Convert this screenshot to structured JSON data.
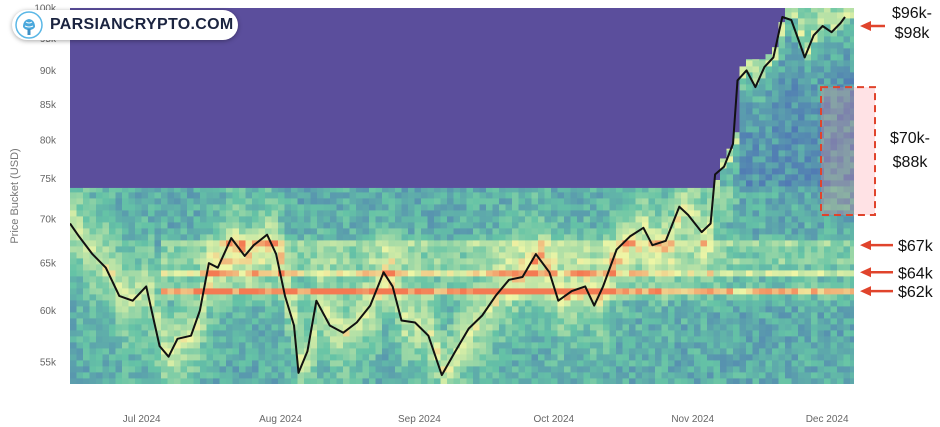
{
  "brand": {
    "name": "PARSIANCRYPTO.COM"
  },
  "chart_data": {
    "type": "heatmap",
    "ylabel": "Price Bucket (USD)",
    "y_scale": "log",
    "ylim": [
      53000,
      100000
    ],
    "yticks": [
      {
        "v": 55000,
        "label": "55k"
      },
      {
        "v": 60000,
        "label": "60k"
      },
      {
        "v": 65000,
        "label": "65k"
      },
      {
        "v": 70000,
        "label": "70k"
      },
      {
        "v": 75000,
        "label": "75k"
      },
      {
        "v": 80000,
        "label": "80k"
      },
      {
        "v": 85000,
        "label": "85k"
      },
      {
        "v": 90000,
        "label": "90k"
      },
      {
        "v": 95000,
        "label": "95k"
      },
      {
        "v": 100000,
        "label": "100k"
      }
    ],
    "xlim": [
      "2024-06-15",
      "2024-12-07"
    ],
    "xticks": [
      {
        "date": "2024-07-01",
        "label": "Jul 2024"
      },
      {
        "date": "2024-08-01",
        "label": "Aug 2024"
      },
      {
        "date": "2024-09-01",
        "label": "Sep 2024"
      },
      {
        "date": "2024-10-01",
        "label": "Oct 2024"
      },
      {
        "date": "2024-11-01",
        "label": "Nov 2024"
      },
      {
        "date": "2024-12-01",
        "label": "Dec 2024"
      }
    ],
    "colors": {
      "empty": "#5b4e9c",
      "low": "#4f74b5",
      "mid": "#65c3a6",
      "high": "#eef6a6",
      "peak": "#f47a52",
      "price_line": "#111111",
      "arrow": "#e0442c"
    },
    "price_series": [
      [
        "2024-06-15",
        69500
      ],
      [
        "2024-06-17",
        68000
      ],
      [
        "2024-06-20",
        66000
      ],
      [
        "2024-06-23",
        64500
      ],
      [
        "2024-06-26",
        61500
      ],
      [
        "2024-06-29",
        61000
      ],
      [
        "2024-07-02",
        62500
      ],
      [
        "2024-07-05",
        56500
      ],
      [
        "2024-07-07",
        55500
      ],
      [
        "2024-07-09",
        57200
      ],
      [
        "2024-07-12",
        57500
      ],
      [
        "2024-07-14",
        60000
      ],
      [
        "2024-07-16",
        65000
      ],
      [
        "2024-07-18",
        64500
      ],
      [
        "2024-07-21",
        67800
      ],
      [
        "2024-07-24",
        65800
      ],
      [
        "2024-07-26",
        67000
      ],
      [
        "2024-07-29",
        68200
      ],
      [
        "2024-07-31",
        66000
      ],
      [
        "2024-08-02",
        61500
      ],
      [
        "2024-08-04",
        58500
      ],
      [
        "2024-08-05",
        54000
      ],
      [
        "2024-08-07",
        56000
      ],
      [
        "2024-08-09",
        61000
      ],
      [
        "2024-08-12",
        58500
      ],
      [
        "2024-08-15",
        57800
      ],
      [
        "2024-08-18",
        58800
      ],
      [
        "2024-08-21",
        60500
      ],
      [
        "2024-08-24",
        64000
      ],
      [
        "2024-08-26",
        62500
      ],
      [
        "2024-08-28",
        59000
      ],
      [
        "2024-08-31",
        58800
      ],
      [
        "2024-09-03",
        57500
      ],
      [
        "2024-09-06",
        53800
      ],
      [
        "2024-09-09",
        56000
      ],
      [
        "2024-09-12",
        58200
      ],
      [
        "2024-09-15",
        59500
      ],
      [
        "2024-09-18",
        61500
      ],
      [
        "2024-09-21",
        63200
      ],
      [
        "2024-09-24",
        63500
      ],
      [
        "2024-09-27",
        66000
      ],
      [
        "2024-09-30",
        64000
      ],
      [
        "2024-10-02",
        61000
      ],
      [
        "2024-10-05",
        62000
      ],
      [
        "2024-10-08",
        62500
      ],
      [
        "2024-10-10",
        60500
      ],
      [
        "2024-10-12",
        62500
      ],
      [
        "2024-10-15",
        66500
      ],
      [
        "2024-10-18",
        68000
      ],
      [
        "2024-10-21",
        69000
      ],
      [
        "2024-10-23",
        67000
      ],
      [
        "2024-10-26",
        67500
      ],
      [
        "2024-10-29",
        71500
      ],
      [
        "2024-10-31",
        70500
      ],
      [
        "2024-11-03",
        68500
      ],
      [
        "2024-11-05",
        69500
      ],
      [
        "2024-11-06",
        75500
      ],
      [
        "2024-11-08",
        76500
      ],
      [
        "2024-11-10",
        79500
      ],
      [
        "2024-11-11",
        88500
      ],
      [
        "2024-11-13",
        90000
      ],
      [
        "2024-11-15",
        87500
      ],
      [
        "2024-11-17",
        90500
      ],
      [
        "2024-11-19",
        92000
      ],
      [
        "2024-11-21",
        98500
      ],
      [
        "2024-11-23",
        98000
      ],
      [
        "2024-11-25",
        94000
      ],
      [
        "2024-11-26",
        92000
      ],
      [
        "2024-11-28",
        95500
      ],
      [
        "2024-11-30",
        97000
      ],
      [
        "2024-12-02",
        96000
      ],
      [
        "2024-12-04",
        97500
      ],
      [
        "2024-12-05",
        98500
      ]
    ],
    "annotations": [
      {
        "lines": [
          "$96k-",
          "$98k"
        ],
        "target": 97000
      },
      {
        "lines": [
          "$70k-",
          "$88k"
        ],
        "range": [
          70500,
          87500
        ]
      },
      {
        "lines": [
          "$67k"
        ],
        "target": 67000
      },
      {
        "lines": [
          "$64k"
        ],
        "target": 64000
      },
      {
        "lines": [
          "$62k"
        ],
        "target": 62000
      }
    ]
  }
}
